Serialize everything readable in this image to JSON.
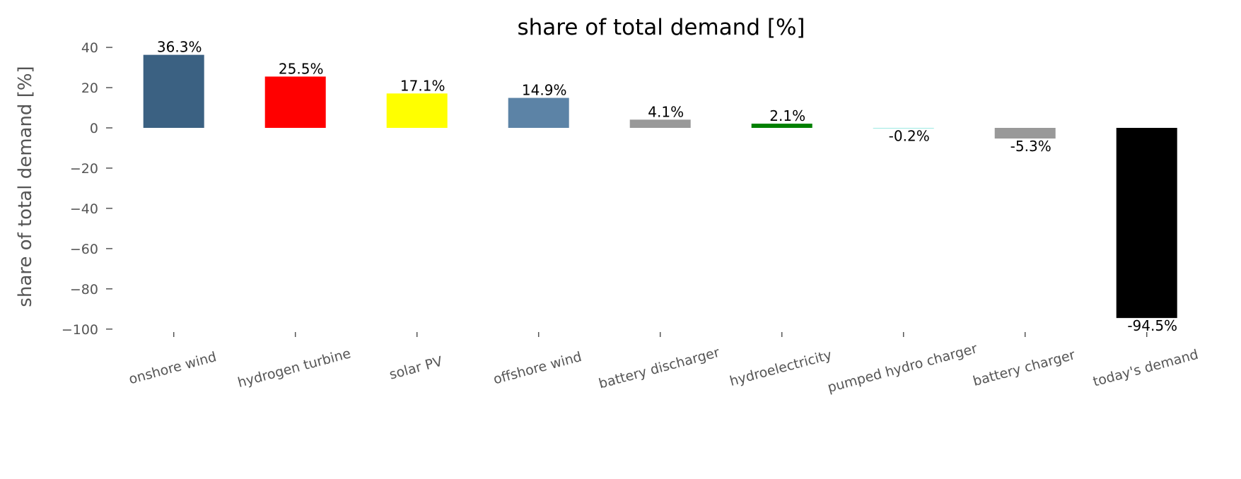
{
  "chart_data": {
    "type": "bar",
    "title": "share of total demand [%]",
    "xlabel": "",
    "ylabel": "share of total demand [%]",
    "ylim": [
      -100,
      45
    ],
    "yticks": [
      40,
      20,
      0,
      -20,
      -40,
      -60,
      -80,
      -100
    ],
    "ytick_labels": [
      "40",
      "20",
      "0",
      "−20",
      "−40",
      "−60",
      "−80",
      "−100"
    ],
    "grid": false,
    "categories": [
      "onshore wind",
      "hydrogen turbine",
      "solar PV",
      "offshore wind",
      "battery discharger",
      "hydroelectricity",
      "pumped hydro charger",
      "battery charger",
      "today's demand"
    ],
    "values": [
      36.3,
      25.5,
      17.1,
      14.9,
      4.1,
      2.1,
      -0.2,
      -5.3,
      -94.5
    ],
    "data_labels": [
      "36.3%",
      "25.5%",
      "17.1%",
      "14.9%",
      "4.1%",
      "2.1%",
      "-0.2%",
      "-5.3%",
      "-94.5%"
    ],
    "colors": [
      "#3b6182",
      "#ff0000",
      "#ffff00",
      "#5c83a6",
      "#999999",
      "#008000",
      "#51dbcc",
      "#999999",
      "#000000"
    ]
  }
}
